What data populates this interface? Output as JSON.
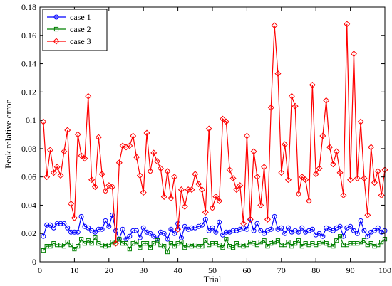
{
  "chart_data": {
    "type": "line",
    "title": "",
    "xlabel": "Trial",
    "ylabel": "Peak relative error",
    "xlim": [
      0,
      100
    ],
    "ylim": [
      0,
      0.18
    ],
    "xticks": [
      0,
      10,
      20,
      30,
      40,
      50,
      60,
      70,
      80,
      90,
      100
    ],
    "yticks": [
      0,
      0.02,
      0.04,
      0.06,
      0.08,
      0.1,
      0.12,
      0.14,
      0.16,
      0.18
    ],
    "xtick_labels": [
      "0",
      "10",
      "20",
      "30",
      "40",
      "50",
      "60",
      "70",
      "80",
      "90",
      "100"
    ],
    "ytick_labels": [
      "0",
      "0.02",
      "0.04",
      "0.06",
      "0.08",
      "0.1",
      "0.12",
      "0.14",
      "0.16",
      "0.18"
    ],
    "grid": false,
    "legend_position": "top-left",
    "x": [
      1,
      2,
      3,
      4,
      5,
      6,
      7,
      8,
      9,
      10,
      11,
      12,
      13,
      14,
      15,
      16,
      17,
      18,
      19,
      20,
      21,
      22,
      23,
      24,
      25,
      26,
      27,
      28,
      29,
      30,
      31,
      32,
      33,
      34,
      35,
      36,
      37,
      38,
      39,
      40,
      41,
      42,
      43,
      44,
      45,
      46,
      47,
      48,
      49,
      50,
      51,
      52,
      53,
      54,
      55,
      56,
      57,
      58,
      59,
      60,
      61,
      62,
      63,
      64,
      65,
      66,
      67,
      68,
      69,
      70,
      71,
      72,
      73,
      74,
      75,
      76,
      77,
      78,
      79,
      80,
      81,
      82,
      83,
      84,
      85,
      86,
      87,
      88,
      89,
      90,
      91,
      92,
      93,
      94,
      95,
      96,
      97,
      98,
      99,
      100
    ],
    "series": [
      {
        "name": "case 1",
        "color": "#0000ff",
        "marker": "circle",
        "values": [
          0.018,
          0.026,
          0.026,
          0.024,
          0.027,
          0.027,
          0.027,
          0.024,
          0.021,
          0.021,
          0.021,
          0.032,
          0.025,
          0.024,
          0.022,
          0.021,
          0.023,
          0.023,
          0.029,
          0.025,
          0.033,
          0.022,
          0.016,
          0.023,
          0.016,
          0.018,
          0.022,
          0.022,
          0.017,
          0.024,
          0.021,
          0.02,
          0.018,
          0.016,
          0.021,
          0.02,
          0.016,
          0.023,
          0.02,
          0.027,
          0.017,
          0.025,
          0.023,
          0.024,
          0.024,
          0.025,
          0.026,
          0.03,
          0.022,
          0.024,
          0.021,
          0.028,
          0.019,
          0.021,
          0.021,
          0.022,
          0.022,
          0.023,
          0.024,
          0.023,
          0.03,
          0.022,
          0.027,
          0.022,
          0.02,
          0.022,
          0.023,
          0.032,
          0.023,
          0.024,
          0.02,
          0.024,
          0.021,
          0.022,
          0.021,
          0.024,
          0.021,
          0.022,
          0.023,
          0.019,
          0.02,
          0.018,
          0.024,
          0.023,
          0.022,
          0.024,
          0.025,
          0.018,
          0.024,
          0.025,
          0.022,
          0.02,
          0.029,
          0.022,
          0.018,
          0.021,
          0.022,
          0.024,
          0.021,
          0.022
        ]
      },
      {
        "name": "case 2",
        "color": "#008000",
        "marker": "square",
        "values": [
          0.008,
          0.011,
          0.011,
          0.013,
          0.012,
          0.012,
          0.011,
          0.014,
          0.012,
          0.009,
          0.011,
          0.016,
          0.013,
          0.015,
          0.013,
          0.017,
          0.013,
          0.012,
          0.011,
          0.012,
          0.014,
          0.013,
          0.016,
          0.013,
          0.013,
          0.009,
          0.013,
          0.014,
          0.01,
          0.013,
          0.013,
          0.01,
          0.013,
          0.015,
          0.012,
          0.011,
          0.007,
          0.013,
          0.011,
          0.013,
          0.014,
          0.01,
          0.012,
          0.011,
          0.012,
          0.011,
          0.011,
          0.015,
          0.012,
          0.013,
          0.013,
          0.012,
          0.01,
          0.016,
          0.011,
          0.01,
          0.013,
          0.012,
          0.011,
          0.012,
          0.014,
          0.013,
          0.012,
          0.014,
          0.015,
          0.011,
          0.013,
          0.014,
          0.015,
          0.012,
          0.012,
          0.014,
          0.011,
          0.013,
          0.015,
          0.011,
          0.013,
          0.012,
          0.013,
          0.012,
          0.013,
          0.014,
          0.013,
          0.012,
          0.011,
          0.015,
          0.018,
          0.012,
          0.012,
          0.013,
          0.013,
          0.013,
          0.014,
          0.015,
          0.012,
          0.013,
          0.011,
          0.012,
          0.014,
          0.016
        ]
      },
      {
        "name": "case 3",
        "color": "#ff0000",
        "marker": "diamond",
        "values": [
          0.099,
          0.06,
          0.079,
          0.063,
          0.067,
          0.061,
          0.078,
          0.093,
          0.041,
          0.031,
          0.09,
          0.075,
          0.073,
          0.117,
          0.058,
          0.053,
          0.088,
          0.062,
          0.05,
          0.054,
          0.053,
          0.013,
          0.07,
          0.082,
          0.081,
          0.082,
          0.089,
          0.074,
          0.061,
          0.049,
          0.091,
          0.064,
          0.077,
          0.071,
          0.066,
          0.046,
          0.064,
          0.045,
          0.06,
          0.023,
          0.051,
          0.039,
          0.051,
          0.051,
          0.062,
          0.055,
          0.051,
          0.035,
          0.094,
          0.038,
          0.046,
          0.043,
          0.101,
          0.099,
          0.065,
          0.059,
          0.051,
          0.054,
          0.027,
          0.089,
          0.03,
          0.078,
          0.06,
          0.04,
          0.067,
          0.03,
          0.109,
          0.167,
          0.133,
          0.063,
          0.083,
          0.058,
          0.117,
          0.11,
          0.048,
          0.06,
          0.058,
          0.043,
          0.125,
          0.062,
          0.066,
          0.089,
          0.114,
          0.081,
          0.069,
          0.078,
          0.063,
          0.047,
          0.168,
          0.058,
          0.147,
          0.059,
          0.099,
          0.059,
          0.033,
          0.081,
          0.056,
          0.064,
          0.047,
          0.065
        ]
      }
    ]
  }
}
